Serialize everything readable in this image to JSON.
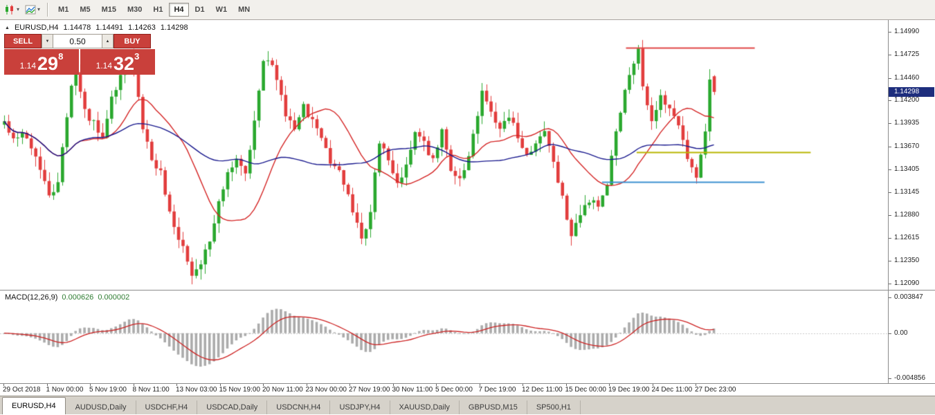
{
  "toolbar": {
    "timeframes": [
      "M1",
      "M5",
      "M15",
      "M30",
      "H1",
      "H4",
      "D1",
      "W1",
      "MN"
    ],
    "active_timeframe": "H4",
    "dropdown_glyph": "▾",
    "icons": [
      {
        "name": "candlestick-chart-icon"
      },
      {
        "name": "indicators-icon"
      }
    ]
  },
  "chart_header": {
    "collapse_glyph": "▲",
    "symbol_period": "EURUSD,H4",
    "open": "1.14478",
    "high": "1.14491",
    "low": "1.14263",
    "close": "1.14298"
  },
  "trade_panel": {
    "sell_label": "SELL",
    "buy_label": "BUY",
    "volume": "0.50",
    "spin_down_glyph": "▼",
    "spin_up_glyph": "▲",
    "sell_price_small": "1.14",
    "sell_price_big": "29",
    "sell_price_sup": "8",
    "buy_price_small": "1.14",
    "buy_price_big": "32",
    "buy_price_sup": "3"
  },
  "price_axis": {
    "labels": [
      "1.14990",
      "1.14725",
      "1.14460",
      "1.14200",
      "1.13935",
      "1.13670",
      "1.13405",
      "1.13145",
      "1.12880",
      "1.12615",
      "1.12350",
      "1.12090"
    ],
    "current_price": "1.14298"
  },
  "macd_panel": {
    "label": "MACD(12,26,9)",
    "value_main": "0.000626",
    "value_signal": "0.000002",
    "axis_labels": [
      "0.003847",
      "0.00",
      "-0.004856"
    ]
  },
  "time_axis": {
    "labels": [
      "29 Oct 2018",
      "1 Nov 00:00",
      "5 Nov 19:00",
      "8 Nov 11:00",
      "13 Nov 03:00",
      "15 Nov 19:00",
      "20 Nov 11:00",
      "23 Nov 00:00",
      "27 Nov 19:00",
      "30 Nov 11:00",
      "5 Dec 00:00",
      "7 Dec 19:00",
      "12 Dec 11:00",
      "15 Dec 00:00",
      "19 Dec 19:00",
      "24 Dec 11:00",
      "27 Dec 23:00"
    ]
  },
  "tabs": [
    "EURUSD,H4",
    "AUDUSD,Daily",
    "USDCHF,H4",
    "USDCAD,Daily",
    "USDCNH,H4",
    "USDJPY,H4",
    "XAUUSD,Daily",
    "GBPUSD,M15",
    "SP500,H1"
  ],
  "active_tab": "EURUSD,H4",
  "colors": {
    "bull": "#2aa82e",
    "bear": "#e23d3d",
    "ma_fast": "#d42424",
    "ma_slow": "#16168c",
    "hline_red": "#e04444",
    "hline_yellow": "#b8b500",
    "hline_blue": "#3a8fd0",
    "macd_hist": "#ababab",
    "macd_signal": "#cc2020",
    "price_badge": "#1e2e7d"
  },
  "chart_data": {
    "type": "candlestick",
    "title": "EURUSD,H4",
    "symbol": "EURUSD",
    "period": "H4",
    "y_axis": {
      "max": 1.1499,
      "min": 1.1209
    },
    "candle_count": 160,
    "close_anchors": [
      [
        0,
        1.1392
      ],
      [
        2,
        1.1372
      ],
      [
        4,
        1.1386
      ],
      [
        6,
        1.1368
      ],
      [
        8,
        1.134
      ],
      [
        10,
        1.1308
      ],
      [
        12,
        1.1328
      ],
      [
        14,
        1.14
      ],
      [
        15,
        1.1438
      ],
      [
        16,
        1.145
      ],
      [
        18,
        1.1408
      ],
      [
        20,
        1.1394
      ],
      [
        22,
        1.1376
      ],
      [
        24,
        1.142
      ],
      [
        26,
        1.1452
      ],
      [
        28,
        1.1468
      ],
      [
        29,
        1.1452
      ],
      [
        31,
        1.1388
      ],
      [
        33,
        1.135
      ],
      [
        35,
        1.1336
      ],
      [
        37,
        1.1292
      ],
      [
        39,
        1.1262
      ],
      [
        41,
        1.1236
      ],
      [
        42,
        1.1219
      ],
      [
        44,
        1.1234
      ],
      [
        46,
        1.1256
      ],
      [
        48,
        1.1304
      ],
      [
        50,
        1.1334
      ],
      [
        52,
        1.135
      ],
      [
        54,
        1.1336
      ],
      [
        56,
        1.1396
      ],
      [
        57,
        1.1428
      ],
      [
        58,
        1.1462
      ],
      [
        59,
        1.147
      ],
      [
        61,
        1.1446
      ],
      [
        63,
        1.1404
      ],
      [
        65,
        1.139
      ],
      [
        67,
        1.1414
      ],
      [
        69,
        1.1396
      ],
      [
        71,
        1.1378
      ],
      [
        73,
        1.135
      ],
      [
        75,
        1.1338
      ],
      [
        77,
        1.131
      ],
      [
        79,
        1.128
      ],
      [
        80,
        1.126
      ],
      [
        82,
        1.1292
      ],
      [
        83,
        1.1336
      ],
      [
        84,
        1.1372
      ],
      [
        86,
        1.135
      ],
      [
        88,
        1.1326
      ],
      [
        90,
        1.1344
      ],
      [
        92,
        1.1388
      ],
      [
        94,
        1.137
      ],
      [
        96,
        1.135
      ],
      [
        98,
        1.1384
      ],
      [
        100,
        1.134
      ],
      [
        102,
        1.1326
      ],
      [
        104,
        1.1356
      ],
      [
        106,
        1.14
      ],
      [
        107,
        1.1434
      ],
      [
        109,
        1.141
      ],
      [
        111,
        1.1386
      ],
      [
        113,
        1.1402
      ],
      [
        115,
        1.138
      ],
      [
        117,
        1.1356
      ],
      [
        119,
        1.1372
      ],
      [
        121,
        1.1384
      ],
      [
        123,
        1.135
      ],
      [
        125,
        1.1306
      ],
      [
        127,
        1.1268
      ],
      [
        129,
        1.1286
      ],
      [
        131,
        1.1306
      ],
      [
        133,
        1.1296
      ],
      [
        135,
        1.1326
      ],
      [
        137,
        1.1388
      ],
      [
        139,
        1.1432
      ],
      [
        141,
        1.1462
      ],
      [
        142,
        1.1476
      ],
      [
        143,
        1.1436
      ],
      [
        145,
        1.14
      ],
      [
        147,
        1.1424
      ],
      [
        149,
        1.1408
      ],
      [
        151,
        1.1394
      ],
      [
        153,
        1.1356
      ],
      [
        155,
        1.1328
      ],
      [
        157,
        1.1386
      ],
      [
        158,
        1.1444
      ],
      [
        159,
        1.14298
      ]
    ],
    "ohlc_last": {
      "open": 1.14478,
      "high": 1.14491,
      "low": 1.14263,
      "close": 1.14298
    },
    "overlays": [
      {
        "type": "sma",
        "period": 18,
        "color_key": "ma_fast"
      },
      {
        "type": "sma",
        "period": 40,
        "color_key": "ma_slow"
      }
    ],
    "hlines": [
      {
        "price": 1.1481,
        "x1_frac": 0.705,
        "x2_frac": 0.85,
        "color_key": "hline_red"
      },
      {
        "price": 1.136,
        "x1_frac": 0.717,
        "x2_frac": 0.913,
        "color_key": "hline_yellow"
      },
      {
        "price": 1.1326,
        "x1_frac": 0.678,
        "x2_frac": 0.861,
        "color_key": "hline_blue"
      }
    ],
    "macd": {
      "fast": 12,
      "slow": 26,
      "signal": 9,
      "axis_max": 0.003847,
      "axis_min": -0.004856
    }
  }
}
